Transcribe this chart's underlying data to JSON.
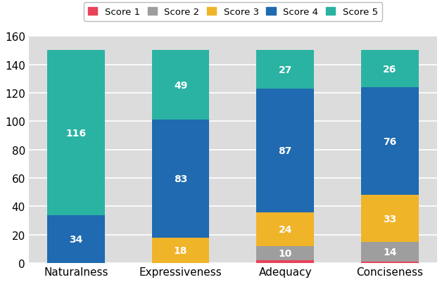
{
  "categories": [
    "Naturalness",
    "Expressiveness",
    "Adequacy",
    "Conciseness"
  ],
  "scores": {
    "Score 1": [
      0,
      0,
      2,
      1
    ],
    "Score 2": [
      0,
      0,
      10,
      14
    ],
    "Score 3": [
      0,
      18,
      24,
      33
    ],
    "Score 4": [
      34,
      83,
      87,
      76
    ],
    "Score 5": [
      116,
      49,
      27,
      26
    ]
  },
  "colors": {
    "Score 1": "#e8435a",
    "Score 2": "#9e9e9e",
    "Score 3": "#f0b429",
    "Score 4": "#1f6ab0",
    "Score 5": "#2ab3a3"
  },
  "bar_labels": {
    "Score 1": [
      null,
      null,
      null,
      null
    ],
    "Score 2": [
      null,
      null,
      10,
      14
    ],
    "Score 3": [
      null,
      18,
      24,
      33
    ],
    "Score 4": [
      34,
      83,
      87,
      76
    ],
    "Score 5": [
      116,
      49,
      27,
      26
    ]
  },
  "ylim": [
    0,
    160
  ],
  "yticks": [
    0,
    20,
    40,
    60,
    80,
    100,
    120,
    140,
    160
  ],
  "background_color": "#dcdcdc",
  "fig_background": "#ffffff",
  "bar_width": 0.55,
  "legend_scores": [
    "Score 1",
    "Score 2",
    "Score 3",
    "Score 4",
    "Score 5"
  ],
  "label_fontsize": 10,
  "tick_fontsize": 11
}
